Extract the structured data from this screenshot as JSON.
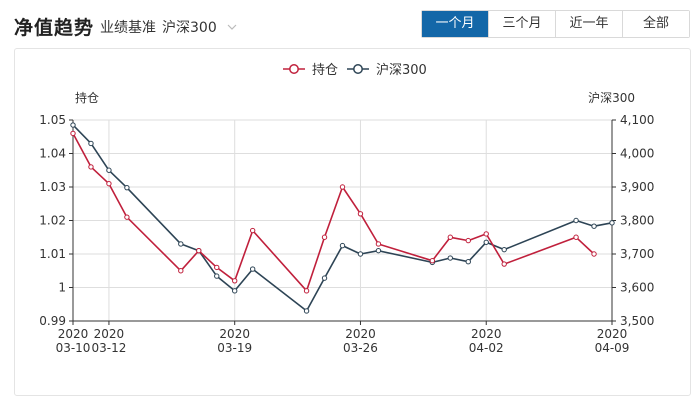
{
  "header": {
    "title": "净值趋势",
    "benchmark_label": "业绩基准",
    "benchmark_value": "沪深300",
    "tabs": [
      {
        "label": "一个月",
        "active": true
      },
      {
        "label": "三个月",
        "active": false
      },
      {
        "label": "近一年",
        "active": false
      },
      {
        "label": "全部",
        "active": false
      }
    ]
  },
  "colors": {
    "accent": "#1367a8",
    "holding": "#c0203c",
    "index": "#2d4455"
  },
  "chart_data": {
    "type": "line",
    "left_axis_label": "持仓",
    "right_axis_label": "沪深300",
    "left_ylim": [
      0.99,
      1.05
    ],
    "right_ylim": [
      3500,
      4100
    ],
    "left_ticks": [
      "1.05",
      "1.04",
      "1.03",
      "1.02",
      "1.01",
      "1",
      "0.99"
    ],
    "right_ticks": [
      "4,100",
      "4,000",
      "3,900",
      "3,800",
      "3,700",
      "3,600",
      "3,500"
    ],
    "x_ticks": [
      {
        "year": "2020",
        "date": "03-10",
        "day": 0
      },
      {
        "year": "2020",
        "date": "03-12",
        "day": 2
      },
      {
        "year": "2020",
        "date": "03-19",
        "day": 9
      },
      {
        "year": "2020",
        "date": "03-26",
        "day": 16
      },
      {
        "year": "2020",
        "date": "04-02",
        "day": 23
      },
      {
        "year": "2020",
        "date": "04-09",
        "day": 30
      }
    ],
    "grid": true,
    "legend_position": "top-center",
    "series": [
      {
        "name": "持仓",
        "axis": "left",
        "points": [
          {
            "day": 0,
            "value": 1.046
          },
          {
            "day": 1,
            "value": 1.036
          },
          {
            "day": 2,
            "value": 1.031
          },
          {
            "day": 3,
            "value": 1.021
          },
          {
            "day": 6,
            "value": 1.005
          },
          {
            "day": 7,
            "value": 1.011
          },
          {
            "day": 8,
            "value": 1.006
          },
          {
            "day": 9,
            "value": 1.002
          },
          {
            "day": 10,
            "value": 1.017
          },
          {
            "day": 13,
            "value": 0.999
          },
          {
            "day": 14,
            "value": 1.015
          },
          {
            "day": 15,
            "value": 1.03
          },
          {
            "day": 16,
            "value": 1.022
          },
          {
            "day": 17,
            "value": 1.013
          },
          {
            "day": 20,
            "value": 1.008
          },
          {
            "day": 21,
            "value": 1.015
          },
          {
            "day": 22,
            "value": 1.014
          },
          {
            "day": 23,
            "value": 1.016
          },
          {
            "day": 24,
            "value": 1.007
          },
          {
            "day": 28,
            "value": 1.015
          },
          {
            "day": 29,
            "value": 1.01
          }
        ]
      },
      {
        "name": "沪深300",
        "axis": "right",
        "points": [
          {
            "day": 0,
            "value": 4085
          },
          {
            "day": 1,
            "value": 4030
          },
          {
            "day": 2,
            "value": 3950
          },
          {
            "day": 3,
            "value": 3898
          },
          {
            "day": 6,
            "value": 3730
          },
          {
            "day": 7,
            "value": 3710
          },
          {
            "day": 8,
            "value": 3634
          },
          {
            "day": 9,
            "value": 3590
          },
          {
            "day": 10,
            "value": 3655
          },
          {
            "day": 13,
            "value": 3530
          },
          {
            "day": 14,
            "value": 3628
          },
          {
            "day": 15,
            "value": 3725
          },
          {
            "day": 16,
            "value": 3700
          },
          {
            "day": 17,
            "value": 3710
          },
          {
            "day": 20,
            "value": 3675
          },
          {
            "day": 21,
            "value": 3688
          },
          {
            "day": 22,
            "value": 3677
          },
          {
            "day": 23,
            "value": 3735
          },
          {
            "day": 24,
            "value": 3713
          },
          {
            "day": 28,
            "value": 3800
          },
          {
            "day": 29,
            "value": 3783
          },
          {
            "day": 30,
            "value": 3793
          }
        ]
      }
    ]
  }
}
